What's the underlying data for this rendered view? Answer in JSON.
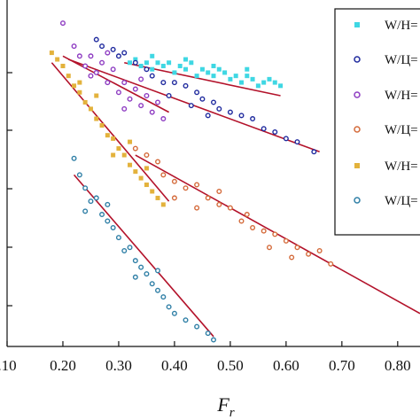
{
  "chart_data": {
    "type": "scatter",
    "xlabel": "F",
    "xlabel_sub": "r",
    "ylabel": "",
    "xlim": [
      0.1,
      0.84
    ],
    "ylim": [
      0,
      1.05
    ],
    "x_ticks": [
      0.1,
      0.2,
      0.3,
      0.4,
      0.5,
      0.6,
      0.7,
      0.8
    ],
    "x_tick_labels": [
      ".10",
      "0.20",
      "0.30",
      "0.40",
      "0.50",
      "0.60",
      "0.70",
      "0.80"
    ],
    "grid": false,
    "legend_position": "right",
    "series": [
      {
        "name": "W/H=",
        "color": "#3fd7e3",
        "marker": "square",
        "points": [
          [
            0.32,
            0.86
          ],
          [
            0.33,
            0.87
          ],
          [
            0.34,
            0.85
          ],
          [
            0.35,
            0.86
          ],
          [
            0.36,
            0.84
          ],
          [
            0.37,
            0.86
          ],
          [
            0.38,
            0.85
          ],
          [
            0.39,
            0.86
          ],
          [
            0.4,
            0.83
          ],
          [
            0.41,
            0.85
          ],
          [
            0.42,
            0.84
          ],
          [
            0.43,
            0.86
          ],
          [
            0.44,
            0.82
          ],
          [
            0.45,
            0.84
          ],
          [
            0.46,
            0.83
          ],
          [
            0.47,
            0.82
          ],
          [
            0.48,
            0.84
          ],
          [
            0.49,
            0.83
          ],
          [
            0.5,
            0.81
          ],
          [
            0.51,
            0.82
          ],
          [
            0.52,
            0.8
          ],
          [
            0.53,
            0.82
          ],
          [
            0.54,
            0.81
          ],
          [
            0.55,
            0.79
          ],
          [
            0.56,
            0.8
          ],
          [
            0.57,
            0.81
          ],
          [
            0.58,
            0.8
          ],
          [
            0.59,
            0.79
          ],
          [
            0.36,
            0.88
          ],
          [
            0.42,
            0.87
          ],
          [
            0.47,
            0.85
          ],
          [
            0.53,
            0.84
          ]
        ],
        "fit": [
          [
            0.31,
            0.86
          ],
          [
            0.59,
            0.76
          ]
        ]
      },
      {
        "name": "W/Ц=",
        "color": "#1f2a9e",
        "marker": "circle",
        "points": [
          [
            0.26,
            0.93
          ],
          [
            0.27,
            0.91
          ],
          [
            0.29,
            0.9
          ],
          [
            0.3,
            0.88
          ],
          [
            0.31,
            0.89
          ],
          [
            0.33,
            0.86
          ],
          [
            0.35,
            0.84
          ],
          [
            0.36,
            0.82
          ],
          [
            0.38,
            0.8
          ],
          [
            0.4,
            0.8
          ],
          [
            0.42,
            0.79
          ],
          [
            0.44,
            0.77
          ],
          [
            0.45,
            0.75
          ],
          [
            0.47,
            0.74
          ],
          [
            0.48,
            0.72
          ],
          [
            0.5,
            0.71
          ],
          [
            0.52,
            0.7
          ],
          [
            0.54,
            0.69
          ],
          [
            0.56,
            0.66
          ],
          [
            0.58,
            0.65
          ],
          [
            0.6,
            0.63
          ],
          [
            0.62,
            0.62
          ],
          [
            0.65,
            0.59
          ],
          [
            0.39,
            0.76
          ],
          [
            0.43,
            0.73
          ],
          [
            0.46,
            0.7
          ]
        ],
        "fit": [
          [
            0.21,
            0.87
          ],
          [
            0.66,
            0.59
          ]
        ]
      },
      {
        "name": "W/H=",
        "color": "#8e3cc2",
        "marker": "circle",
        "points": [
          [
            0.2,
            0.98
          ],
          [
            0.22,
            0.91
          ],
          [
            0.23,
            0.88
          ],
          [
            0.24,
            0.85
          ],
          [
            0.25,
            0.88
          ],
          [
            0.26,
            0.83
          ],
          [
            0.27,
            0.86
          ],
          [
            0.28,
            0.8
          ],
          [
            0.29,
            0.84
          ],
          [
            0.3,
            0.77
          ],
          [
            0.31,
            0.8
          ],
          [
            0.32,
            0.75
          ],
          [
            0.33,
            0.78
          ],
          [
            0.34,
            0.73
          ],
          [
            0.35,
            0.76
          ],
          [
            0.36,
            0.71
          ],
          [
            0.37,
            0.74
          ],
          [
            0.38,
            0.69
          ],
          [
            0.25,
            0.82
          ],
          [
            0.28,
            0.89
          ],
          [
            0.31,
            0.72
          ],
          [
            0.34,
            0.81
          ]
        ],
        "fit": [
          [
            0.2,
            0.88
          ],
          [
            0.39,
            0.71
          ]
        ]
      },
      {
        "name": "W/Ц=",
        "color": "#d46a3a",
        "marker": "circle",
        "points": [
          [
            0.33,
            0.6
          ],
          [
            0.35,
            0.58
          ],
          [
            0.37,
            0.56
          ],
          [
            0.38,
            0.52
          ],
          [
            0.4,
            0.5
          ],
          [
            0.42,
            0.48
          ],
          [
            0.44,
            0.49
          ],
          [
            0.46,
            0.45
          ],
          [
            0.48,
            0.43
          ],
          [
            0.5,
            0.42
          ],
          [
            0.52,
            0.38
          ],
          [
            0.54,
            0.36
          ],
          [
            0.56,
            0.35
          ],
          [
            0.58,
            0.34
          ],
          [
            0.6,
            0.32
          ],
          [
            0.62,
            0.3
          ],
          [
            0.64,
            0.28
          ],
          [
            0.66,
            0.29
          ],
          [
            0.68,
            0.25
          ],
          [
            0.4,
            0.45
          ],
          [
            0.44,
            0.42
          ],
          [
            0.48,
            0.47
          ],
          [
            0.53,
            0.4
          ],
          [
            0.57,
            0.3
          ],
          [
            0.61,
            0.27
          ]
        ],
        "fit": [
          [
            0.33,
            0.58
          ],
          [
            0.84,
            0.1
          ]
        ]
      },
      {
        "name": "W/H=",
        "color": "#e3b23c",
        "marker": "square",
        "points": [
          [
            0.18,
            0.89
          ],
          [
            0.19,
            0.87
          ],
          [
            0.2,
            0.85
          ],
          [
            0.21,
            0.82
          ],
          [
            0.22,
            0.79
          ],
          [
            0.23,
            0.77
          ],
          [
            0.24,
            0.74
          ],
          [
            0.25,
            0.72
          ],
          [
            0.26,
            0.69
          ],
          [
            0.27,
            0.67
          ],
          [
            0.28,
            0.64
          ],
          [
            0.29,
            0.63
          ],
          [
            0.3,
            0.6
          ],
          [
            0.31,
            0.58
          ],
          [
            0.32,
            0.55
          ],
          [
            0.33,
            0.53
          ],
          [
            0.34,
            0.51
          ],
          [
            0.35,
            0.49
          ],
          [
            0.36,
            0.47
          ],
          [
            0.37,
            0.45
          ],
          [
            0.38,
            0.43
          ],
          [
            0.23,
            0.8
          ],
          [
            0.26,
            0.76
          ],
          [
            0.29,
            0.58
          ],
          [
            0.32,
            0.62
          ],
          [
            0.35,
            0.54
          ]
        ],
        "fit": [
          [
            0.18,
            0.86
          ],
          [
            0.39,
            0.44
          ]
        ]
      },
      {
        "name": "W/Ц=",
        "color": "#2f7fa6",
        "marker": "circle",
        "points": [
          [
            0.22,
            0.57
          ],
          [
            0.23,
            0.52
          ],
          [
            0.24,
            0.48
          ],
          [
            0.25,
            0.44
          ],
          [
            0.26,
            0.45
          ],
          [
            0.27,
            0.4
          ],
          [
            0.28,
            0.38
          ],
          [
            0.29,
            0.36
          ],
          [
            0.3,
            0.33
          ],
          [
            0.31,
            0.29
          ],
          [
            0.32,
            0.3
          ],
          [
            0.33,
            0.26
          ],
          [
            0.34,
            0.24
          ],
          [
            0.35,
            0.22
          ],
          [
            0.36,
            0.19
          ],
          [
            0.37,
            0.17
          ],
          [
            0.38,
            0.15
          ],
          [
            0.39,
            0.12
          ],
          [
            0.4,
            0.1
          ],
          [
            0.42,
            0.08
          ],
          [
            0.44,
            0.06
          ],
          [
            0.46,
            0.04
          ],
          [
            0.47,
            0.02
          ],
          [
            0.24,
            0.41
          ],
          [
            0.28,
            0.43
          ],
          [
            0.33,
            0.21
          ],
          [
            0.37,
            0.23
          ]
        ],
        "fit": [
          [
            0.22,
            0.52
          ],
          [
            0.47,
            0.03
          ]
        ]
      }
    ]
  }
}
